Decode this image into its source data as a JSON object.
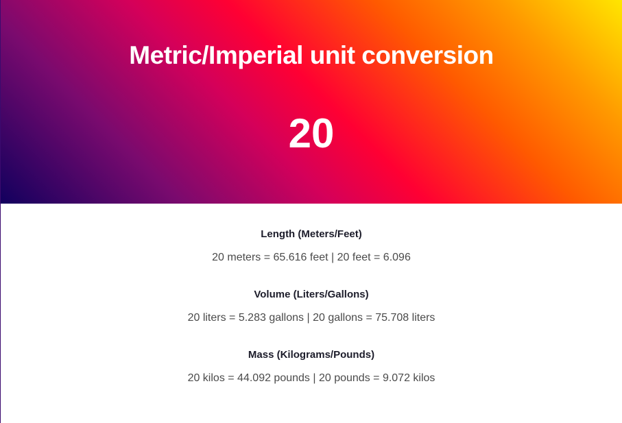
{
  "header": {
    "title": "Metric/Imperial unit conversion",
    "value": "20"
  },
  "conversions": [
    {
      "title": "Length (Meters/Feet)",
      "text": "20 meters = 65.616 feet | 20 feet = 6.096"
    },
    {
      "title": "Volume (Liters/Gallons)",
      "text": "20 liters = 5.283 gallons | 20 gallons = 75.708 liters"
    },
    {
      "title": "Mass (Kilograms/Pounds)",
      "text": "20 kilos = 44.092 pounds | 20 pounds = 9.072 kilos"
    }
  ],
  "colors": {
    "gradient_start": "#12005e",
    "gradient_mid": "#ff0033",
    "gradient_end": "#ffe600"
  }
}
